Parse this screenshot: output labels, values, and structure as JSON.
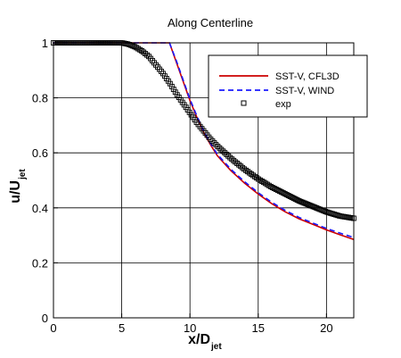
{
  "chart_data": {
    "type": "line",
    "title": "Along Centerline",
    "xlabel": {
      "main": "x/D",
      "sub": "jet"
    },
    "ylabel": {
      "main": "u/U",
      "sub": "jet"
    },
    "xlim": [
      0,
      22
    ],
    "ylim": [
      0,
      1
    ],
    "xticks": [
      0,
      5,
      10,
      15,
      20
    ],
    "yticks": [
      0,
      0.2,
      0.4,
      0.6,
      0.8,
      1
    ],
    "xtick_labels": [
      "0",
      "5",
      "10",
      "15",
      "20"
    ],
    "ytick_labels": [
      "0",
      "0.2",
      "0.4",
      "0.6",
      "0.8",
      "1"
    ],
    "grid": true,
    "legend_position": "top-right",
    "series": [
      {
        "name": "SST-V, CFL3D",
        "style": "solid",
        "color": "#cc0000",
        "x": [
          0,
          1,
          2,
          3,
          4,
          5,
          6,
          7,
          8,
          8.5,
          9,
          9.5,
          10,
          10.5,
          11,
          11.5,
          12,
          13,
          14,
          15,
          16,
          17,
          18,
          19,
          20,
          21,
          22
        ],
        "y": [
          1,
          1,
          1,
          1,
          1,
          1,
          1,
          1,
          1,
          1,
          0.93,
          0.86,
          0.79,
          0.73,
          0.675,
          0.63,
          0.59,
          0.535,
          0.49,
          0.45,
          0.415,
          0.385,
          0.36,
          0.34,
          0.32,
          0.302,
          0.285
        ]
      },
      {
        "name": "SST-V, WIND",
        "style": "dashed",
        "color": "#1a1aff",
        "x": [
          0,
          1,
          2,
          3,
          4,
          5,
          6,
          7,
          8,
          8.5,
          9,
          9.5,
          10,
          10.5,
          11,
          11.5,
          12,
          13,
          14,
          15,
          16,
          17,
          18,
          19,
          20,
          21,
          22
        ],
        "y": [
          1,
          1,
          1,
          1,
          1,
          1,
          1,
          1,
          1,
          1,
          0.935,
          0.865,
          0.795,
          0.735,
          0.68,
          0.635,
          0.595,
          0.54,
          0.495,
          0.455,
          0.42,
          0.39,
          0.365,
          0.345,
          0.325,
          0.308,
          0.292
        ]
      },
      {
        "name": "exp",
        "style": "markers",
        "color": "#000000",
        "x": [
          0,
          1,
          2,
          3,
          4,
          5,
          5.5,
          6,
          6.5,
          7,
          7.5,
          8,
          8.5,
          9,
          9.5,
          10,
          10.5,
          11,
          11.5,
          12,
          13,
          14,
          15,
          16,
          17,
          18,
          19,
          20,
          21,
          22
        ],
        "y": [
          1,
          1,
          1,
          1,
          1,
          1,
          0.995,
          0.985,
          0.97,
          0.95,
          0.92,
          0.89,
          0.855,
          0.815,
          0.78,
          0.745,
          0.71,
          0.68,
          0.65,
          0.625,
          0.58,
          0.54,
          0.505,
          0.475,
          0.45,
          0.425,
          0.405,
          0.385,
          0.37,
          0.362
        ]
      }
    ]
  }
}
